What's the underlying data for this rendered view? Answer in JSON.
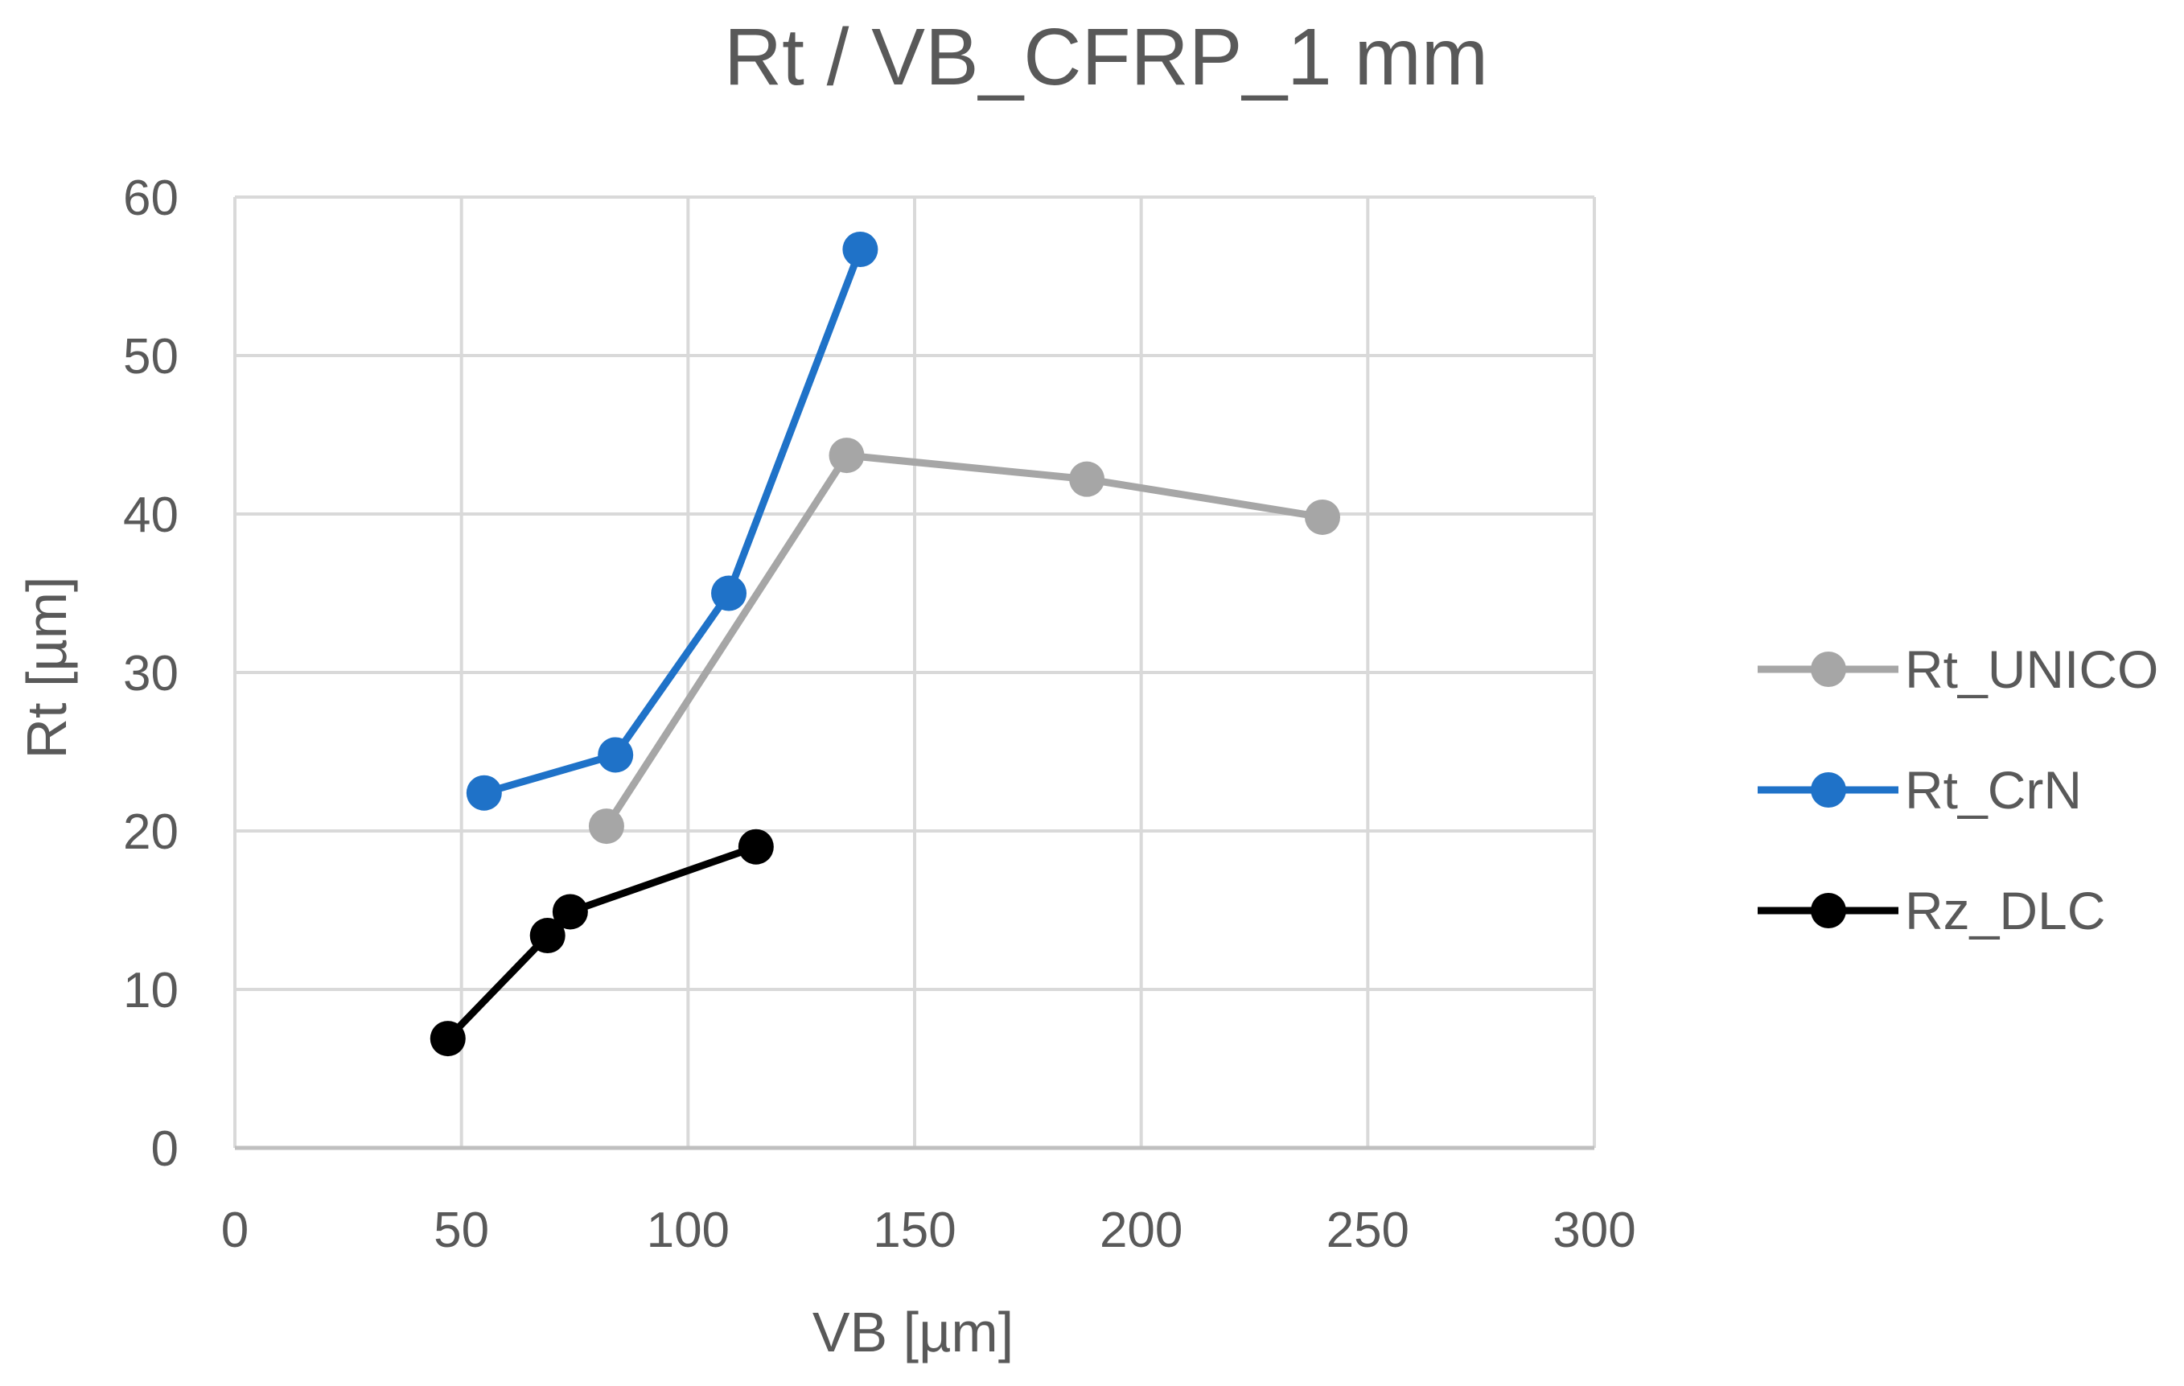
{
  "chart_data": {
    "type": "scatter",
    "title": "Rt / VB_CFRP_1 mm",
    "xlabel": "VB [µm]",
    "ylabel": "Rt [µm]",
    "xlim": [
      0,
      300
    ],
    "ylim": [
      0,
      60
    ],
    "xticks": [
      0,
      50,
      100,
      150,
      200,
      250,
      300
    ],
    "yticks": [
      0,
      10,
      20,
      30,
      40,
      50,
      60
    ],
    "grid": true,
    "legend_position": "right",
    "series": [
      {
        "name": "Rt_UNICO",
        "color": "#a6a6a6",
        "x": [
          82,
          135,
          188,
          240
        ],
        "y": [
          20.3,
          43.7,
          42.2,
          39.8
        ]
      },
      {
        "name": "Rt_CrN",
        "color": "#1f72c8",
        "x": [
          55,
          84,
          109,
          138
        ],
        "y": [
          22.4,
          24.8,
          35.0,
          56.7
        ]
      },
      {
        "name": "Rz_DLC",
        "color": "#000000",
        "x": [
          47,
          69,
          74,
          115
        ],
        "y": [
          6.9,
          13.4,
          14.9,
          19.0
        ]
      }
    ]
  }
}
